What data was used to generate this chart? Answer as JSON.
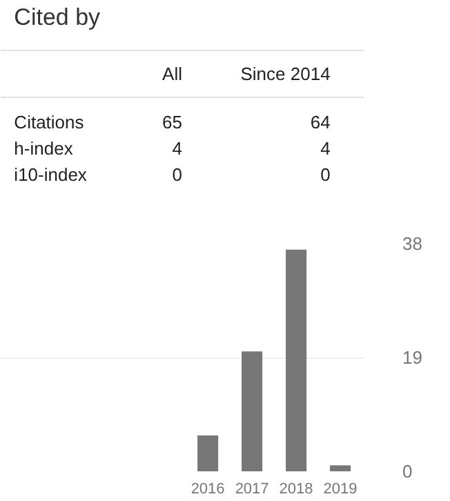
{
  "chart_data": [
    {
      "type": "other",
      "title": "Cited by",
      "annotations": [
        "All",
        "Since 2014",
        "Citations",
        "65",
        "64",
        "h-index",
        "4",
        "4",
        "i10-index",
        "0",
        "0"
      ]
    },
    {
      "type": "bar",
      "categories": [
        null,
        null,
        null,
        null,
        "2016",
        "2017",
        "2018",
        "2019"
      ],
      "values": [
        null,
        null,
        null,
        null,
        6,
        20,
        37,
        1
      ],
      "color": "#777777",
      "ylim": [
        0,
        38
      ],
      "yticks": [
        0,
        19,
        38
      ],
      "grid": "y"
    }
  ]
}
